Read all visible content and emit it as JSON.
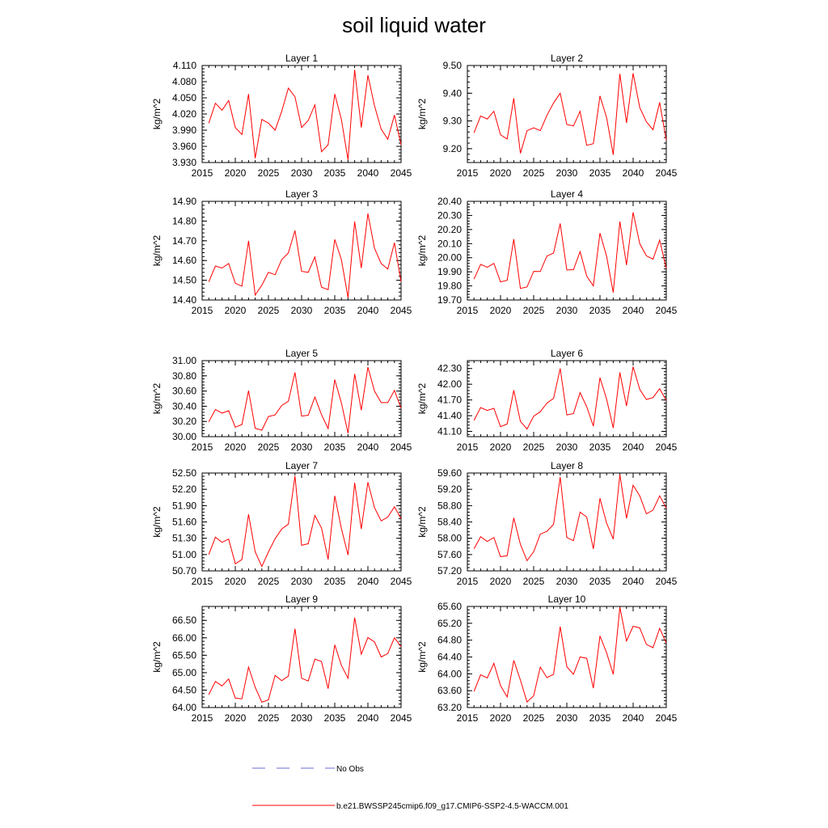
{
  "title": "soil liquid water",
  "legend": {
    "obs_label": "No Obs",
    "obs_color": "#6b6bd8",
    "model_label": "b.e21.BWSSP245cmip6.f09_g17.CMIP6-SSP2-4.5-WACCM.001",
    "model_color": "#ff0000"
  },
  "chart_data": [
    {
      "type": "line",
      "title": "Layer 1",
      "ylabel": "kg/m^2",
      "xlim": [
        2015,
        2045
      ],
      "xticks": [
        "2015",
        "2020",
        "2025",
        "2030",
        "2035",
        "2040",
        "2045"
      ],
      "ylim": [
        3.93,
        4.11
      ],
      "yticks": [
        "3.930",
        "3.960",
        "3.990",
        "4.020",
        "4.050",
        "4.080",
        "4.110"
      ],
      "x": [
        2016,
        2017,
        2018,
        2019,
        2020,
        2021,
        2022,
        2023,
        2024,
        2025,
        2026,
        2027,
        2028,
        2029,
        2030,
        2031,
        2032,
        2033,
        2034,
        2035,
        2036,
        2037,
        2038,
        2039,
        2040,
        2041,
        2042,
        2043,
        2044,
        2045
      ],
      "series": [
        {
          "color": "#ff0000",
          "values": [
            4.003,
            4.04,
            4.027,
            4.045,
            3.995,
            3.982,
            4.057,
            3.938,
            4.01,
            4.003,
            3.99,
            4.025,
            4.068,
            4.052,
            3.995,
            4.008,
            4.037,
            3.95,
            3.963,
            4.057,
            4.01,
            3.935,
            4.102,
            3.995,
            4.092,
            4.035,
            3.992,
            3.973,
            4.018,
            3.963
          ]
        }
      ]
    },
    {
      "type": "line",
      "title": "Layer 2",
      "ylabel": "kg/m^2",
      "xlim": [
        2015,
        2045
      ],
      "xticks": [
        "2015",
        "2020",
        "2025",
        "2030",
        "2035",
        "2040",
        "2045"
      ],
      "ylim": [
        9.15,
        9.5
      ],
      "yticks": [
        "9.20",
        "9.30",
        "9.40",
        "9.50"
      ],
      "x": [
        2016,
        2017,
        2018,
        2019,
        2020,
        2021,
        2022,
        2023,
        2024,
        2025,
        2026,
        2027,
        2028,
        2029,
        2030,
        2031,
        2032,
        2033,
        2034,
        2035,
        2036,
        2037,
        2038,
        2039,
        2040,
        2041,
        2042,
        2043,
        2044,
        2045
      ],
      "series": [
        {
          "color": "#ff0000",
          "values": [
            9.257,
            9.318,
            9.307,
            9.335,
            9.25,
            9.235,
            9.382,
            9.183,
            9.265,
            9.275,
            9.265,
            9.32,
            9.365,
            9.4,
            9.287,
            9.282,
            9.335,
            9.212,
            9.218,
            9.39,
            9.312,
            9.178,
            9.47,
            9.293,
            9.472,
            9.348,
            9.297,
            9.268,
            9.367,
            9.23
          ]
        }
      ]
    },
    {
      "type": "line",
      "title": "Layer 3",
      "ylabel": "kg/m^2",
      "xlim": [
        2015,
        2045
      ],
      "xticks": [
        "2015",
        "2020",
        "2025",
        "2030",
        "2035",
        "2040",
        "2045"
      ],
      "ylim": [
        14.4,
        14.9
      ],
      "yticks": [
        "14.40",
        "14.50",
        "14.60",
        "14.70",
        "14.80",
        "14.90"
      ],
      "x": [
        2016,
        2017,
        2018,
        2019,
        2020,
        2021,
        2022,
        2023,
        2024,
        2025,
        2026,
        2027,
        2028,
        2029,
        2030,
        2031,
        2032,
        2033,
        2034,
        2035,
        2036,
        2037,
        2038,
        2039,
        2040,
        2041,
        2042,
        2043,
        2044,
        2045
      ],
      "series": [
        {
          "color": "#ff0000",
          "values": [
            14.492,
            14.572,
            14.562,
            14.585,
            14.485,
            14.47,
            14.7,
            14.425,
            14.475,
            14.54,
            14.528,
            14.605,
            14.638,
            14.752,
            14.545,
            14.54,
            14.618,
            14.465,
            14.452,
            14.707,
            14.605,
            14.412,
            14.798,
            14.562,
            14.838,
            14.662,
            14.585,
            14.557,
            14.69,
            14.492
          ]
        }
      ]
    },
    {
      "type": "line",
      "title": "Layer 4",
      "ylabel": "kg/m^2",
      "xlim": [
        2015,
        2045
      ],
      "xticks": [
        "2015",
        "2020",
        "2025",
        "2030",
        "2035",
        "2040",
        "2045"
      ],
      "ylim": [
        19.7,
        20.4
      ],
      "yticks": [
        "19.70",
        "19.80",
        "19.90",
        "20.00",
        "20.10",
        "20.20",
        "20.30",
        "20.40"
      ],
      "x": [
        2016,
        2017,
        2018,
        2019,
        2020,
        2021,
        2022,
        2023,
        2024,
        2025,
        2026,
        2027,
        2028,
        2029,
        2030,
        2031,
        2032,
        2033,
        2034,
        2035,
        2036,
        2037,
        2038,
        2039,
        2040,
        2041,
        2042,
        2043,
        2044,
        2045
      ],
      "series": [
        {
          "color": "#ff0000",
          "values": [
            19.848,
            19.953,
            19.932,
            19.96,
            19.828,
            19.84,
            20.132,
            19.782,
            19.793,
            19.903,
            19.902,
            20.012,
            20.033,
            20.243,
            19.913,
            19.915,
            20.043,
            19.87,
            19.8,
            20.175,
            20.01,
            19.753,
            20.257,
            19.948,
            20.322,
            20.1,
            20.013,
            19.99,
            20.125,
            19.923
          ]
        }
      ]
    },
    {
      "type": "line",
      "title": "Layer 5",
      "ylabel": "kg/m^2",
      "xlim": [
        2015,
        2045
      ],
      "xticks": [
        "2015",
        "2020",
        "2025",
        "2030",
        "2035",
        "2040",
        "2045"
      ],
      "ylim": [
        30.0,
        31.0
      ],
      "yticks": [
        "30.00",
        "30.20",
        "30.40",
        "30.60",
        "30.80",
        "31.00"
      ],
      "x": [
        2016,
        2017,
        2018,
        2019,
        2020,
        2021,
        2022,
        2023,
        2024,
        2025,
        2026,
        2027,
        2028,
        2029,
        2030,
        2031,
        2032,
        2033,
        2034,
        2035,
        2036,
        2037,
        2038,
        2039,
        2040,
        2041,
        2042,
        2043,
        2044,
        2045
      ],
      "series": [
        {
          "color": "#ff0000",
          "values": [
            30.195,
            30.357,
            30.31,
            30.342,
            30.125,
            30.16,
            30.605,
            30.11,
            30.085,
            30.265,
            30.285,
            30.41,
            30.465,
            30.845,
            30.27,
            30.282,
            30.52,
            30.29,
            30.105,
            30.75,
            30.445,
            30.045,
            30.825,
            30.348,
            30.915,
            30.598,
            30.448,
            30.448,
            30.608,
            30.375
          ]
        }
      ]
    },
    {
      "type": "line",
      "title": "Layer 6",
      "ylabel": "kg/m^2",
      "xlim": [
        2015,
        2045
      ],
      "xticks": [
        "2015",
        "2020",
        "2025",
        "2030",
        "2035",
        "2040",
        "2045"
      ],
      "ylim": [
        41.0,
        42.45
      ],
      "yticks": [
        "41.10",
        "41.40",
        "41.70",
        "42.00",
        "42.30"
      ],
      "x": [
        2016,
        2017,
        2018,
        2019,
        2020,
        2021,
        2022,
        2023,
        2024,
        2025,
        2026,
        2027,
        2028,
        2029,
        2030,
        2031,
        2032,
        2033,
        2034,
        2035,
        2036,
        2037,
        2038,
        2039,
        2040,
        2041,
        2042,
        2043,
        2044,
        2045
      ],
      "series": [
        {
          "color": "#ff0000",
          "values": [
            41.31,
            41.555,
            41.5,
            41.54,
            41.19,
            41.24,
            41.885,
            41.29,
            41.145,
            41.39,
            41.475,
            41.64,
            41.73,
            42.3,
            41.415,
            41.44,
            41.84,
            41.57,
            41.2,
            42.125,
            41.715,
            41.165,
            42.225,
            41.585,
            42.335,
            41.9,
            41.71,
            41.745,
            41.915,
            41.69
          ]
        }
      ]
    },
    {
      "type": "line",
      "title": "Layer 7",
      "ylabel": "kg/m^2",
      "xlim": [
        2015,
        2045
      ],
      "xticks": [
        "2015",
        "2020",
        "2025",
        "2030",
        "2035",
        "2040",
        "2045"
      ],
      "ylim": [
        50.7,
        52.5
      ],
      "yticks": [
        "50.70",
        "51.00",
        "51.30",
        "51.60",
        "51.90",
        "52.20",
        "52.50"
      ],
      "x": [
        2016,
        2017,
        2018,
        2019,
        2020,
        2021,
        2022,
        2023,
        2024,
        2025,
        2026,
        2027,
        2028,
        2029,
        2030,
        2031,
        2032,
        2033,
        2034,
        2035,
        2036,
        2037,
        2038,
        2039,
        2040,
        2041,
        2042,
        2043,
        2044,
        2045
      ],
      "series": [
        {
          "color": "#ff0000",
          "values": [
            51.0,
            51.32,
            51.225,
            51.285,
            50.83,
            50.91,
            51.74,
            51.05,
            50.78,
            51.05,
            51.29,
            51.47,
            51.56,
            52.445,
            51.17,
            51.2,
            51.72,
            51.49,
            50.91,
            52.08,
            51.48,
            50.99,
            52.32,
            51.47,
            52.33,
            51.86,
            51.62,
            51.69,
            51.88,
            51.66
          ]
        }
      ]
    },
    {
      "type": "line",
      "title": "Layer 8",
      "ylabel": "kg/m^2",
      "xlim": [
        2015,
        2045
      ],
      "xticks": [
        "2015",
        "2020",
        "2025",
        "2030",
        "2035",
        "2040",
        "2045"
      ],
      "ylim": [
        57.2,
        59.6
      ],
      "yticks": [
        "57.20",
        "57.60",
        "58.00",
        "58.40",
        "58.80",
        "59.20",
        "59.60"
      ],
      "x": [
        2016,
        2017,
        2018,
        2019,
        2020,
        2021,
        2022,
        2023,
        2024,
        2025,
        2026,
        2027,
        2028,
        2029,
        2030,
        2031,
        2032,
        2033,
        2034,
        2035,
        2036,
        2037,
        2038,
        2039,
        2040,
        2041,
        2042,
        2043,
        2044,
        2045
      ],
      "series": [
        {
          "color": "#ff0000",
          "values": [
            57.74,
            58.04,
            57.92,
            58.02,
            57.55,
            57.57,
            58.5,
            57.85,
            57.45,
            57.67,
            58.1,
            58.17,
            58.34,
            59.5,
            58.02,
            57.94,
            58.64,
            58.52,
            57.74,
            58.98,
            58.37,
            57.98,
            59.56,
            58.49,
            59.3,
            59.04,
            58.6,
            58.69,
            59.04,
            58.74
          ]
        }
      ]
    },
    {
      "type": "line",
      "title": "Layer 9",
      "ylabel": "kg/m^2",
      "xlim": [
        2015,
        2045
      ],
      "xticks": [
        "2015",
        "2020",
        "2025",
        "2030",
        "2035",
        "2040",
        "2045"
      ],
      "ylim": [
        64.0,
        66.9
      ],
      "yticks": [
        "64.00",
        "64.50",
        "65.00",
        "65.50",
        "66.00",
        "66.50"
      ],
      "x": [
        2016,
        2017,
        2018,
        2019,
        2020,
        2021,
        2022,
        2023,
        2024,
        2025,
        2026,
        2027,
        2028,
        2029,
        2030,
        2031,
        2032,
        2033,
        2034,
        2035,
        2036,
        2037,
        2038,
        2039,
        2040,
        2041,
        2042,
        2043,
        2044,
        2045
      ],
      "series": [
        {
          "color": "#ff0000",
          "values": [
            64.37,
            64.75,
            64.62,
            64.82,
            64.27,
            64.25,
            65.16,
            64.58,
            64.15,
            64.22,
            64.92,
            64.77,
            64.9,
            66.26,
            64.84,
            64.76,
            65.39,
            65.32,
            64.54,
            65.8,
            65.21,
            64.84,
            66.58,
            65.53,
            66.01,
            65.88,
            65.45,
            65.55,
            66.0,
            65.75
          ]
        }
      ]
    },
    {
      "type": "line",
      "title": "Layer 10",
      "ylabel": "kg/m^2",
      "xlim": [
        2015,
        2045
      ],
      "xticks": [
        "2015",
        "2020",
        "2025",
        "2030",
        "2035",
        "2040",
        "2045"
      ],
      "ylim": [
        63.2,
        65.6
      ],
      "yticks": [
        "63.20",
        "63.60",
        "64.00",
        "64.40",
        "64.80",
        "65.20",
        "65.60"
      ],
      "x": [
        2016,
        2017,
        2018,
        2019,
        2020,
        2021,
        2022,
        2023,
        2024,
        2025,
        2026,
        2027,
        2028,
        2029,
        2030,
        2031,
        2032,
        2033,
        2034,
        2035,
        2036,
        2037,
        2038,
        2039,
        2040,
        2041,
        2042,
        2043,
        2044,
        2045
      ],
      "series": [
        {
          "color": "#ff0000",
          "values": [
            63.58,
            63.98,
            63.9,
            64.25,
            63.72,
            63.45,
            64.32,
            63.85,
            63.33,
            63.48,
            64.16,
            63.91,
            63.99,
            65.12,
            64.17,
            63.99,
            64.4,
            64.37,
            63.66,
            64.9,
            64.5,
            63.99,
            65.58,
            64.78,
            65.13,
            65.09,
            64.7,
            64.62,
            65.08,
            64.73
          ]
        }
      ]
    }
  ]
}
